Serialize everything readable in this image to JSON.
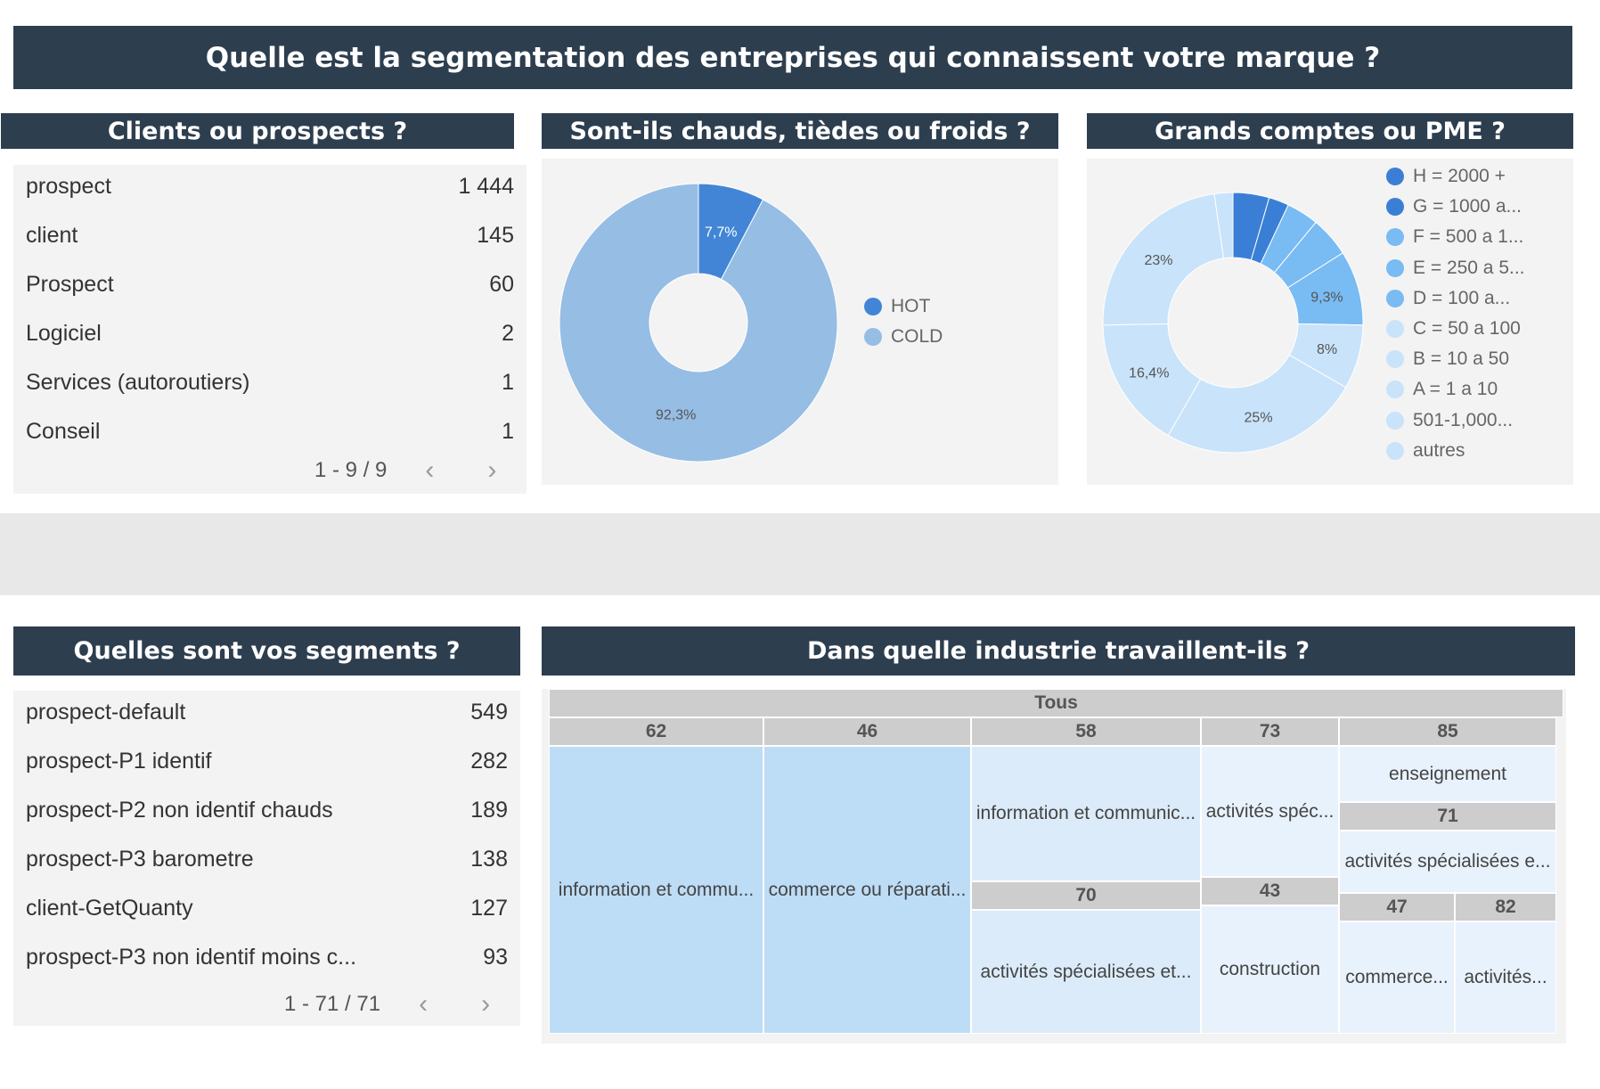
{
  "main_title": "Quelle est la segmentation des entreprises qui connaissent votre marque  ?",
  "clients_card": {
    "title": "Clients ou prospects ?",
    "rows": [
      {
        "label": "prospect",
        "value": "1 444"
      },
      {
        "label": "client",
        "value": "145"
      },
      {
        "label": "Prospect",
        "value": "60"
      },
      {
        "label": "Logiciel",
        "value": "2"
      },
      {
        "label": "Services (autoroutiers)",
        "value": "1"
      },
      {
        "label": "Conseil",
        "value": "1"
      }
    ],
    "pagination": "1 - 9 / 9"
  },
  "temperature_card": {
    "title": "Sont-ils chauds, tièdes ou froids ?",
    "chart_data": {
      "type": "pie",
      "slices": [
        {
          "name": "HOT",
          "value": 7.7,
          "label": "7,7%",
          "color": "#4285d6"
        },
        {
          "name": "COLD",
          "value": 92.3,
          "label": "92,3%",
          "color": "#96bde4"
        }
      ]
    }
  },
  "size_card": {
    "title": "Grands comptes ou PME ?",
    "chart_data": {
      "type": "pie",
      "slices": [
        {
          "name": "H = 2000 +",
          "value": 4.5,
          "label": "",
          "color": "#3a7fd5"
        },
        {
          "name": "G = 1000 a...",
          "value": 2.5,
          "label": "",
          "color": "#3a7fd5"
        },
        {
          "name": "F = 500 a 1...",
          "value": 4.0,
          "label": "",
          "color": "#79bbf3"
        },
        {
          "name": "E = 250 a 5...",
          "value": 5.0,
          "label": "",
          "color": "#79bbf3"
        },
        {
          "name": "D = 100 a...",
          "value": 9.3,
          "label": "9,3%",
          "color": "#79bbf3"
        },
        {
          "name": "C = 50 a 100",
          "value": 8.0,
          "label": "8%",
          "color": "#c9e3fa"
        },
        {
          "name": "B = 10 a 50",
          "value": 25.0,
          "label": "25%",
          "color": "#c9e3fa"
        },
        {
          "name": "A = 1 a 10",
          "value": 16.4,
          "label": "16,4%",
          "color": "#c9e3fa"
        },
        {
          "name": "501-1,000...",
          "value": 23.0,
          "label": "23%",
          "color": "#c9e3fa"
        },
        {
          "name": "autres",
          "value": 2.3,
          "label": "",
          "color": "#c9e3fa"
        }
      ]
    }
  },
  "segments_card": {
    "title": "Quelles sont vos segments ?",
    "rows": [
      {
        "label": "prospect-default",
        "value": "549"
      },
      {
        "label": "prospect-P1 identif",
        "value": "282"
      },
      {
        "label": "prospect-P2 non identif chauds",
        "value": "189"
      },
      {
        "label": "prospect-P3 barometre",
        "value": "138"
      },
      {
        "label": "client-GetQuanty",
        "value": "127"
      },
      {
        "label": "prospect-P3 non identif moins c...",
        "value": "93"
      }
    ],
    "pagination": "1 - 71 / 71"
  },
  "industry_card": {
    "title": "Dans quelle industrie travaillent-ils ?",
    "treemap": {
      "root": "Tous",
      "h62": "62",
      "c62": "information et commu...",
      "h46": "46",
      "c46": "commerce ou réparati...",
      "h58": "58",
      "c58": "information et communic...",
      "h70": "70",
      "c70": "activités spécialisées et...",
      "h73": "73",
      "c73": "activités spéc...",
      "h43": "43",
      "c43": "construction",
      "h85": "85",
      "c85": "enseignement",
      "h71": "71",
      "c71": "activités spécialisées e...",
      "h47": "47",
      "c47": "commerce...",
      "h82": "82",
      "c82": "activités..."
    }
  }
}
